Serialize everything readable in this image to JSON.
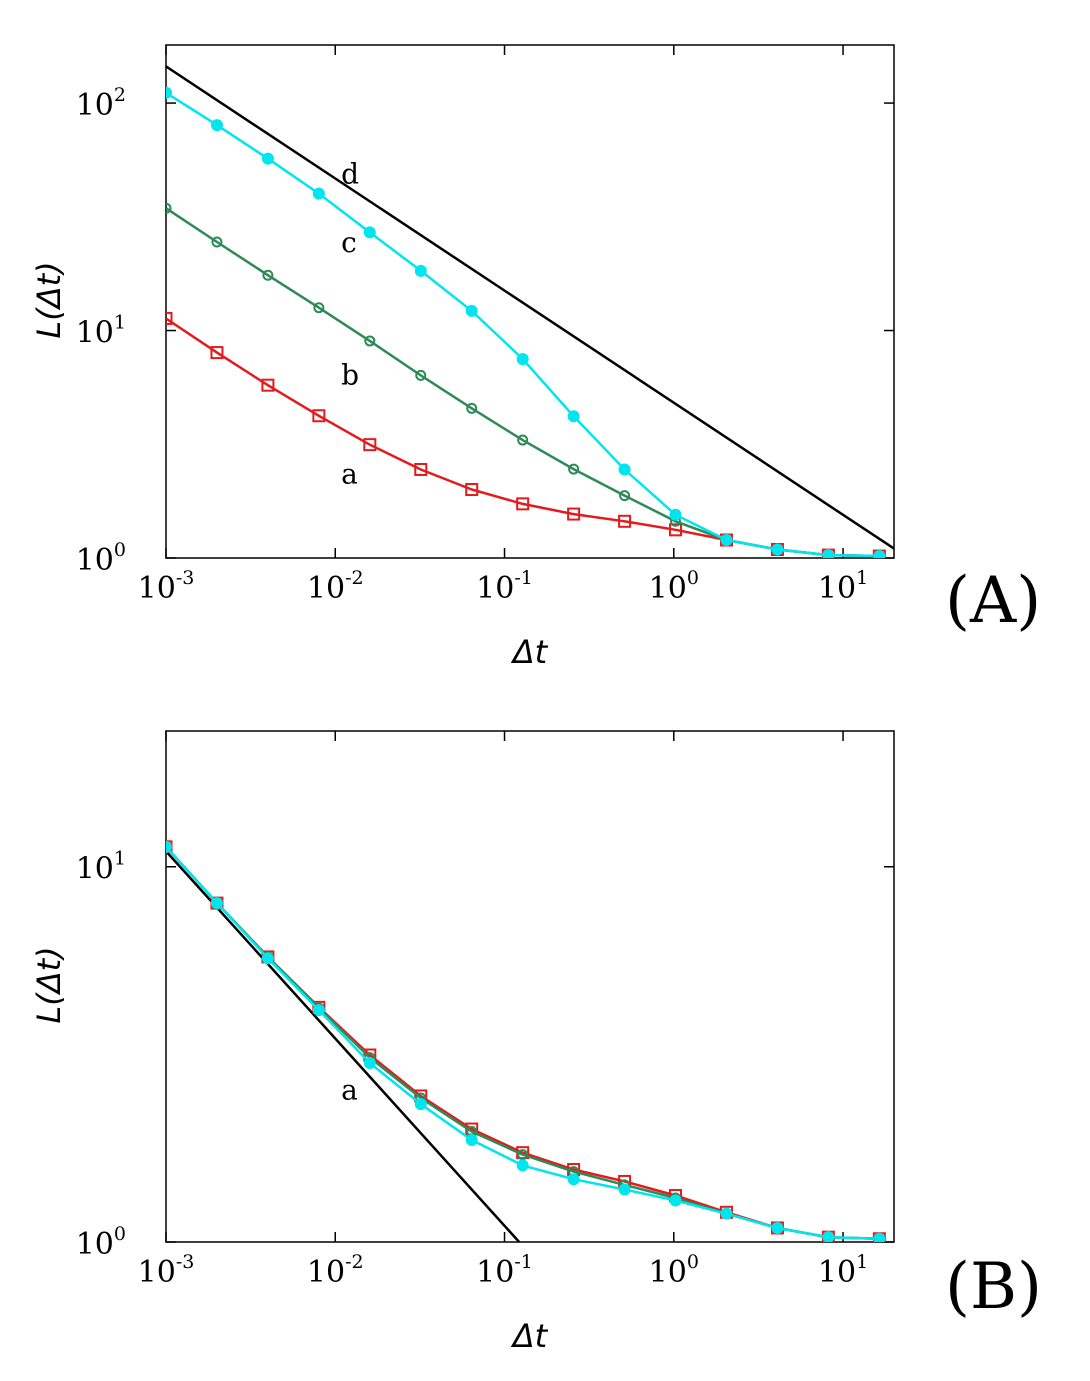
{
  "chart_data": [
    {
      "type": "line",
      "panel_label": "(A)",
      "xlabel": "Δt",
      "ylabel": "L(Δt)",
      "x_scale": "log",
      "y_scale": "log",
      "xlim": [
        0.001,
        20
      ],
      "ylim": [
        1,
        180
      ],
      "x_ticks": [
        {
          "base": "10",
          "exp": "-3",
          "value": 0.001
        },
        {
          "base": "10",
          "exp": "-2",
          "value": 0.01
        },
        {
          "base": "10",
          "exp": "-1",
          "value": 0.1
        },
        {
          "base": "10",
          "exp": "0",
          "value": 1
        },
        {
          "base": "10",
          "exp": "1",
          "value": 10
        }
      ],
      "y_ticks": [
        {
          "base": "10",
          "exp": "0",
          "value": 1
        },
        {
          "base": "10",
          "exp": "1",
          "value": 10
        },
        {
          "base": "10",
          "exp": "2",
          "value": 100
        }
      ],
      "x": [
        0.001,
        0.002,
        0.004,
        0.008,
        0.016,
        0.032,
        0.064,
        0.128,
        0.256,
        0.512,
        1.024,
        2.048,
        4.096,
        8.192,
        16.384
      ],
      "series": [
        {
          "label": "a",
          "color": "#e41a1c",
          "marker": "square",
          "values": [
            11.3,
            8.0,
            5.75,
            4.22,
            3.15,
            2.45,
            2.0,
            1.73,
            1.56,
            1.45,
            1.33,
            1.2,
            1.09,
            1.03,
            1.02
          ]
        },
        {
          "label": "b",
          "color": "#2e8b57",
          "marker": "open-circle",
          "values": [
            34.5,
            24.5,
            17.5,
            12.6,
            9.0,
            6.35,
            4.55,
            3.3,
            2.46,
            1.88,
            1.45,
            1.2,
            1.09,
            1.03,
            1.02
          ]
        },
        {
          "label": "c",
          "color": "#00e5ee",
          "marker": "filled-circle",
          "values": [
            111,
            80,
            57,
            40,
            27,
            18.3,
            12.2,
            7.5,
            4.2,
            2.45,
            1.55,
            1.2,
            1.09,
            1.03,
            1.02
          ]
        }
      ],
      "reference_lines": [
        {
          "label": "d",
          "color": "#000000",
          "x": [
            0.001,
            20
          ],
          "y": [
            145,
            1.1
          ]
        }
      ],
      "annotations": [
        {
          "text": "a",
          "x": 0.015,
          "y": 2.35
        },
        {
          "text": "b",
          "x": 0.015,
          "y": 6.4
        },
        {
          "text": "c",
          "x": 0.015,
          "y": 24.5
        },
        {
          "text": "d",
          "x": 0.015,
          "y": 49
        }
      ]
    },
    {
      "type": "line",
      "panel_label": "(B)",
      "xlabel": "Δt",
      "ylabel": "L(Δt)",
      "x_scale": "log",
      "y_scale": "log",
      "xlim": [
        0.001,
        20
      ],
      "ylim": [
        1,
        23
      ],
      "x_ticks": [
        {
          "base": "10",
          "exp": "-3",
          "value": 0.001
        },
        {
          "base": "10",
          "exp": "-2",
          "value": 0.01
        },
        {
          "base": "10",
          "exp": "-1",
          "value": 0.1
        },
        {
          "base": "10",
          "exp": "0",
          "value": 1
        },
        {
          "base": "10",
          "exp": "1",
          "value": 10
        }
      ],
      "y_ticks": [
        {
          "base": "10",
          "exp": "0",
          "value": 1
        },
        {
          "base": "10",
          "exp": "1",
          "value": 10
        }
      ],
      "x": [
        0.001,
        0.002,
        0.004,
        0.008,
        0.016,
        0.032,
        0.064,
        0.128,
        0.256,
        0.512,
        1.024,
        2.048,
        4.096,
        8.192,
        16.384
      ],
      "series": [
        {
          "color": "#e41a1c",
          "marker": "square",
          "values": [
            11.3,
            8.0,
            5.75,
            4.22,
            3.15,
            2.45,
            2.0,
            1.73,
            1.56,
            1.45,
            1.33,
            1.2,
            1.09,
            1.03,
            1.02
          ]
        },
        {
          "color": "#2e8b57",
          "marker": "open-circle",
          "values": [
            11.3,
            8.0,
            5.75,
            4.2,
            3.1,
            2.42,
            1.97,
            1.71,
            1.54,
            1.42,
            1.31,
            1.19,
            1.09,
            1.03,
            1.02
          ]
        },
        {
          "color": "#00e5ee",
          "marker": "filled-circle",
          "values": [
            11.3,
            8.0,
            5.7,
            4.15,
            3.0,
            2.33,
            1.87,
            1.6,
            1.47,
            1.38,
            1.29,
            1.19,
            1.09,
            1.03,
            1.02
          ]
        }
      ],
      "reference_lines": [
        {
          "label": "a",
          "color": "#000000",
          "x": [
            0.001,
            0.122
          ],
          "y": [
            11.0,
            1.0
          ]
        }
      ],
      "annotations": [
        {
          "text": "a",
          "x": 0.015,
          "y": 2.55
        }
      ]
    }
  ]
}
